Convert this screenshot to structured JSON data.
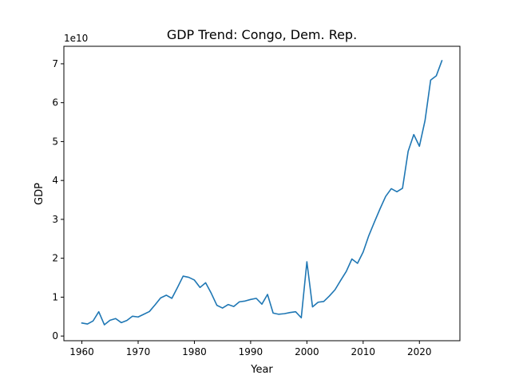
{
  "chart_data": {
    "type": "line",
    "title": "GDP Trend: Congo, Dem. Rep.",
    "xlabel": "Year",
    "ylabel": "GDP",
    "y_offset_label": "1e10",
    "x_ticks": [
      "1960",
      "1970",
      "1980",
      "1990",
      "2000",
      "2010",
      "2020"
    ],
    "y_ticks": [
      "0",
      "1",
      "2",
      "3",
      "4",
      "5",
      "6",
      "7"
    ],
    "xlim": [
      1956.8,
      2027.2
    ],
    "ylim": [
      -1200000000.0,
      74500000000.0
    ],
    "grid": false,
    "series": [
      {
        "color": "#1f77b4",
        "x": [
          1960,
          1961,
          1962,
          1963,
          1964,
          1965,
          1966,
          1967,
          1968,
          1969,
          1970,
          1971,
          1972,
          1973,
          1974,
          1975,
          1976,
          1977,
          1978,
          1979,
          1980,
          1981,
          1982,
          1983,
          1984,
          1985,
          1986,
          1987,
          1988,
          1989,
          1990,
          1991,
          1992,
          1993,
          1994,
          1995,
          1996,
          1997,
          1998,
          1999,
          2000,
          2001,
          2002,
          2003,
          2004,
          2005,
          2006,
          2007,
          2008,
          2009,
          2010,
          2011,
          2012,
          2013,
          2014,
          2015,
          2016,
          2017,
          2018,
          2019,
          2020,
          2021,
          2022,
          2023,
          2024
        ],
        "values": [
          3350000000.0,
          3100000000.0,
          3900000000.0,
          6250000000.0,
          2900000000.0,
          4050000000.0,
          4500000000.0,
          3450000000.0,
          4000000000.0,
          5100000000.0,
          4900000000.0,
          5600000000.0,
          6300000000.0,
          8000000000.0,
          9800000000.0,
          10500000000.0,
          9700000000.0,
          12500000000.0,
          15400000000.0,
          15100000000.0,
          14400000000.0,
          12500000000.0,
          13700000000.0,
          11000000000.0,
          7900000000.0,
          7200000000.0,
          8100000000.0,
          7600000000.0,
          8800000000.0,
          9000000000.0,
          9400000000.0,
          9700000000.0,
          8200000000.0,
          10700000000.0,
          5900000000.0,
          5600000000.0,
          5750000000.0,
          6050000000.0,
          6250000000.0,
          4700000000.0,
          19100000000.0,
          7500000000.0,
          8700000000.0,
          8900000000.0,
          10300000000.0,
          11900000000.0,
          14300000000.0,
          16600000000.0,
          19800000000.0,
          18700000000.0,
          21600000000.0,
          25800000000.0,
          29300000000.0,
          32700000000.0,
          35900000000.0,
          37900000000.0,
          37100000000.0,
          38000000000.0,
          47500000000.0,
          51800000000.0,
          48800000000.0,
          55400000000.0,
          65800000000.0,
          66900000000.0,
          70800000000.0
        ]
      }
    ]
  }
}
